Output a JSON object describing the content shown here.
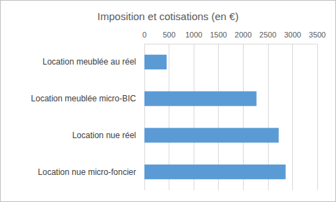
{
  "chart_data": {
    "type": "bar",
    "title": "Imposition et cotisations (en €)",
    "orientation": "horizontal",
    "categories": [
      "Location meublée au réel",
      "Location meublée micro-BIC",
      "Location nue réel",
      "Location nue micro-foncier"
    ],
    "values": [
      450,
      2270,
      2720,
      2860
    ],
    "color": "#5b9bd5",
    "xlim": [
      0,
      3500
    ],
    "xticks": [
      0,
      500,
      1000,
      1500,
      2000,
      2500,
      3000,
      3500
    ],
    "grid": true
  }
}
